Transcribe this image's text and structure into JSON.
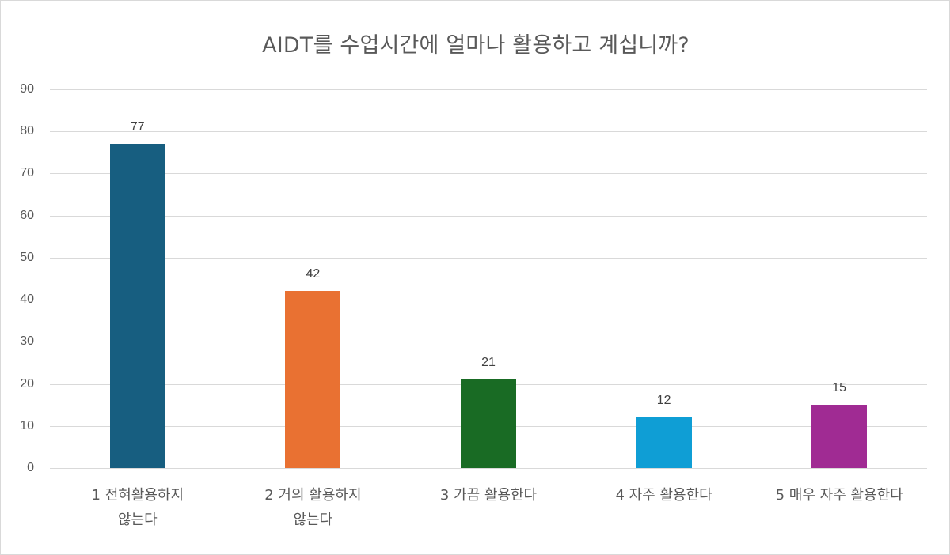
{
  "chart_data": {
    "type": "bar",
    "title": "AIDT를 수업시간에 얼마나 활용하고 계십니까?",
    "categories": [
      "1 전혀활용하지 않는다",
      "2 거의 활용하지 않는다",
      "3 가끔 활용한다",
      "4 자주 활용한다",
      "5 매우 자주 활용한다"
    ],
    "category_lines": [
      [
        "1 전혀활용하지",
        "않는다"
      ],
      [
        "2 거의 활용하지",
        "않는다"
      ],
      [
        "3 가끔 활용한다"
      ],
      [
        "4 자주 활용한다"
      ],
      [
        "5 매우 자주 활용한다"
      ]
    ],
    "values": [
      77,
      42,
      21,
      12,
      15
    ],
    "data_labels": [
      "77",
      "42",
      "21",
      "12",
      "15"
    ],
    "colors": [
      "#175e80",
      "#e97132",
      "#196b24",
      "#0f9ed5",
      "#a02b93"
    ],
    "xlabel": "",
    "ylabel": "",
    "ylim": [
      0,
      90
    ],
    "yticks": [
      "0",
      "10",
      "20",
      "30",
      "40",
      "50",
      "60",
      "70",
      "80",
      "90"
    ],
    "grid": true,
    "legend": "none"
  }
}
